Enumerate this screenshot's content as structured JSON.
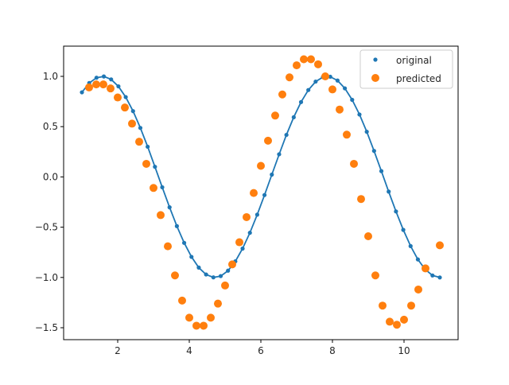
{
  "chart_data": {
    "type": "scatter",
    "title": "",
    "xlabel": "",
    "ylabel": "",
    "xlim": [
      0.5,
      11.5
    ],
    "ylim": [
      -1.62,
      1.3
    ],
    "grid": false,
    "legend_position": "upper right",
    "x_ticks": [
      2,
      4,
      6,
      8,
      10
    ],
    "x_tick_labels": [
      "2",
      "4",
      "6",
      "8",
      "10"
    ],
    "y_ticks": [
      1.0,
      0.5,
      0.0,
      -0.5,
      -1.0,
      -1.5
    ],
    "y_tick_labels": [
      "1.0",
      "0.5",
      "0.0",
      "−0.5",
      "−1.0",
      "−1.5"
    ],
    "series": [
      {
        "name": "original",
        "style": "line+small-markers",
        "color": "#1f77b4",
        "function": "sin(x)",
        "x_start": 1.0,
        "x_end": 11.0,
        "n_points": 50
      },
      {
        "name": "predicted",
        "style": "large-markers",
        "color": "#ff7f0e",
        "x": [
          1.2,
          1.4,
          1.6,
          1.8,
          2.0,
          2.2,
          2.4,
          2.6,
          2.8,
          3.0,
          3.2,
          3.4,
          3.6,
          3.8,
          4.0,
          4.2,
          4.4,
          4.6,
          4.8,
          5.0,
          5.2,
          5.4,
          5.6,
          5.8,
          6.0,
          6.2,
          6.4,
          6.6,
          6.8,
          7.0,
          7.2,
          7.4,
          7.6,
          7.8,
          8.0,
          8.2,
          8.4,
          8.6,
          8.8,
          9.0,
          9.2,
          9.4,
          9.6,
          9.8,
          10.0,
          10.2,
          10.4,
          10.6,
          11.0
        ],
        "values": [
          0.89,
          0.92,
          0.92,
          0.88,
          0.79,
          0.69,
          0.53,
          0.35,
          0.13,
          -0.11,
          -0.38,
          -0.69,
          -0.98,
          -1.23,
          -1.4,
          -1.48,
          -1.48,
          -1.4,
          -1.26,
          -1.08,
          -0.87,
          -0.65,
          -0.4,
          -0.16,
          0.11,
          0.36,
          0.61,
          0.82,
          0.99,
          1.11,
          1.17,
          1.17,
          1.12,
          1.0,
          0.87,
          0.67,
          0.42,
          0.13,
          -0.22,
          -0.59,
          -0.98,
          -1.28,
          -1.44,
          -1.47,
          -1.42,
          -1.28,
          -1.12,
          -0.91,
          -0.68
        ]
      }
    ]
  }
}
